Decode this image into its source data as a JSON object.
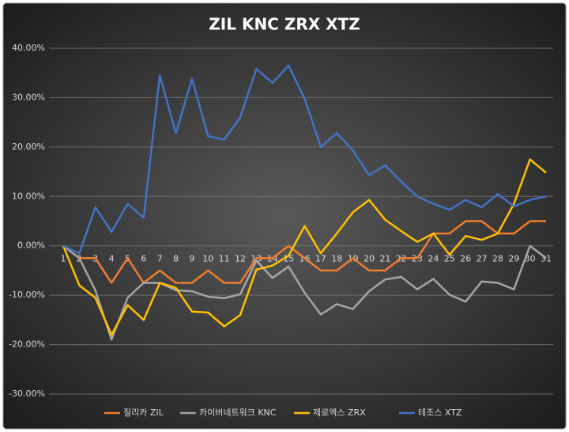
{
  "chart_data": {
    "type": "line",
    "title": "ZIL KNC ZRX XTZ",
    "categories": [
      "1",
      "2",
      "3",
      "4",
      "5",
      "6",
      "7",
      "8",
      "9",
      "10",
      "11",
      "12",
      "13",
      "14",
      "15",
      "16",
      "17",
      "18",
      "19",
      "20",
      "21",
      "22",
      "23",
      "24",
      "25",
      "26",
      "27",
      "28",
      "29",
      "30",
      "31"
    ],
    "series": [
      {
        "name": "질리카 ZIL",
        "color": "#ed7d31",
        "values": [
          0,
          -2.5,
          -2.5,
          -7.5,
          -2.5,
          -7.5,
          -5,
          -7.5,
          -7.5,
          -5,
          -7.5,
          -7.5,
          -2.5,
          -2.5,
          0,
          -2.5,
          -5,
          -5,
          -2.5,
          -5,
          -5,
          -2.5,
          -2.5,
          2.5,
          2.5,
          5,
          5,
          2.5,
          2.5,
          5,
          5
        ]
      },
      {
        "name": "카이버네트워크 KNC",
        "color": "#a5a5a5",
        "values": [
          0,
          -2.5,
          -9,
          -19,
          -10.5,
          -7.5,
          -7.5,
          -9,
          -9.2,
          -10.3,
          -10.6,
          -9.8,
          -3,
          -6.5,
          -4.2,
          -9.5,
          -13.9,
          -11.8,
          -12.8,
          -9.2,
          -6.8,
          -6.3,
          -8.8,
          -6.7,
          -9.9,
          -11.3,
          -7.2,
          -7.5,
          -8.8,
          0,
          -2.5
        ]
      },
      {
        "name": "제로엑스 ZRX",
        "color": "#ffc000",
        "values": [
          0,
          -8,
          -10.5,
          -18,
          -12,
          -15,
          -7.5,
          -8.5,
          -13.3,
          -13.5,
          -16.3,
          -14,
          -4.8,
          -4,
          -2,
          4,
          -1.5,
          2.5,
          6.8,
          9.3,
          5.3,
          3,
          0.8,
          2.5,
          -1.8,
          2,
          1.2,
          2.5,
          8.5,
          17.5,
          14.8
        ]
      },
      {
        "name": "테조스 XTZ",
        "color": "#4472c4",
        "values": [
          0,
          -1.5,
          7.8,
          2.8,
          8.5,
          5.7,
          34.5,
          22.8,
          33.8,
          22.2,
          21.5,
          26,
          35.8,
          33,
          36.5,
          29.8,
          20,
          22.8,
          19.3,
          14.3,
          16.3,
          13,
          10,
          8.5,
          7.3,
          9.3,
          7.8,
          10.5,
          8,
          9.3,
          10
        ]
      }
    ],
    "ylim": [
      -30,
      40
    ],
    "yticks": [
      {
        "value": -30,
        "label": "-30.00%"
      },
      {
        "value": -20,
        "label": "-20.00%"
      },
      {
        "value": -10,
        "label": "-10.00%"
      },
      {
        "value": 0,
        "label": "0.00%"
      },
      {
        "value": 10,
        "label": "10.00%"
      },
      {
        "value": 20,
        "label": "20.00%"
      },
      {
        "value": 30,
        "label": "30.00%"
      },
      {
        "value": 40,
        "label": "40.00%"
      }
    ],
    "grid": true
  }
}
